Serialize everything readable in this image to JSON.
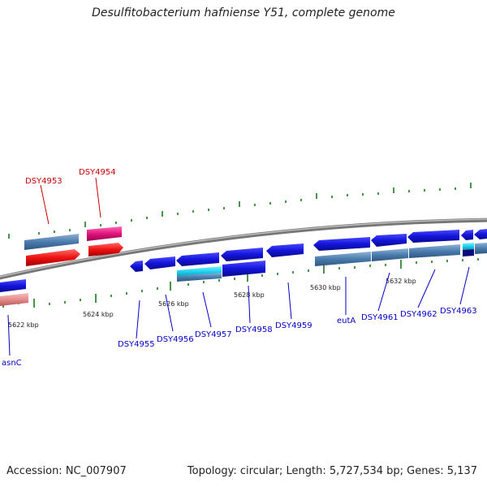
{
  "title": "Desulfitobacterium hafniense Y51, complete genome",
  "footer": {
    "accession": "Accession: NC_007907",
    "summary": "Topology: circular; Length: 5,727,534 bp; Genes: 5,137"
  },
  "colors": {
    "blue_gene": "#1010d8",
    "steel_gene": "#4a7cae",
    "red_gene": "#ee1111",
    "pink_gene": "#e0147a",
    "salmon_gene": "#e58c8c",
    "cyan_gene": "#19d0ee",
    "label_blue": "#0000c8",
    "label_red": "#c80000",
    "tick_green": "#1a7a1a"
  },
  "scale_labels": [
    "5622 kbp",
    "5624 kbp",
    "5626 kbp",
    "5628 kbp",
    "5630 kbp",
    "5632 kbp"
  ],
  "gene_labels": {
    "outer": [
      "DSY4953",
      "DSY4954"
    ],
    "inner": [
      "asnC",
      "DSY4955",
      "DSY4956",
      "DSY4957",
      "DSY4958",
      "DSY4959",
      "eutA",
      "DSY4961",
      "DSY4962",
      "DSY4963"
    ]
  }
}
